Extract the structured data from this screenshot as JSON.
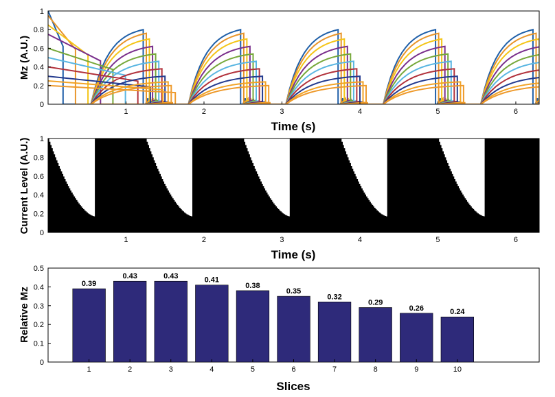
{
  "chart_data": [
    {
      "type": "line",
      "ylabel": "Mz (A.U.)",
      "xlabel": "Time (s)",
      "xlim": [
        0,
        6.3
      ],
      "ylim": [
        0,
        1
      ],
      "xticks": [
        "1",
        "2",
        "3",
        "4",
        "5",
        "6"
      ],
      "yticks": [
        "0",
        "0.2",
        "0.4",
        "0.6",
        "0.8",
        "1"
      ],
      "cycle_period_s": 1.25,
      "recovery_start_s": 0.55,
      "readout_end_s": 1.3,
      "n_slices": 10,
      "series_start_values": [
        1.0,
        0.95,
        0.85,
        0.75,
        0.6,
        0.5,
        0.4,
        0.3,
        0.25,
        0.2
      ],
      "series_peak_values": [
        0.8,
        0.76,
        0.7,
        0.62,
        0.54,
        0.46,
        0.38,
        0.3,
        0.24,
        0.2
      ],
      "series_colors": [
        "#1f5fa8",
        "#e8952a",
        "#f4c518",
        "#7a2f8c",
        "#76a83a",
        "#5ab6e2",
        "#b1303a",
        "#233a8e",
        "#f2a325",
        "#ee9a2c"
      ]
    },
    {
      "type": "heatmap",
      "ylabel": "Current Level (A.U.)",
      "xlabel": "Time (s)",
      "xlim": [
        0,
        6.3
      ],
      "ylim": [
        0,
        1
      ],
      "xticks": [
        "1",
        "2",
        "3",
        "4",
        "5",
        "6"
      ],
      "yticks": [
        "0",
        "0.2",
        "0.4",
        "0.6",
        "0.8",
        "1"
      ],
      "cycle_period_s": 1.25,
      "steps_per_cycle": 40,
      "white_region_top_level": 1.0,
      "white_region_bottom_level": 0.17,
      "cycle_start_times_s": [
        0.0,
        1.25,
        2.5,
        3.75,
        5.0
      ]
    },
    {
      "type": "bar",
      "ylabel": "Relative Mz",
      "xlabel": "Slices",
      "categories": [
        "1",
        "2",
        "3",
        "4",
        "5",
        "6",
        "7",
        "8",
        "9",
        "10"
      ],
      "values": [
        0.39,
        0.43,
        0.43,
        0.41,
        0.38,
        0.35,
        0.32,
        0.29,
        0.26,
        0.24
      ],
      "labels": [
        "0.39",
        "0.43",
        "0.43",
        "0.41",
        "0.38",
        "0.35",
        "0.32",
        "0.29",
        "0.26",
        "0.24"
      ],
      "ylim": [
        0,
        0.5
      ],
      "xlim": [
        0,
        12
      ],
      "yticks": [
        "0",
        "0.1",
        "0.2",
        "0.3",
        "0.4",
        "0.5"
      ],
      "bar_color": "#2e2a7a"
    }
  ]
}
